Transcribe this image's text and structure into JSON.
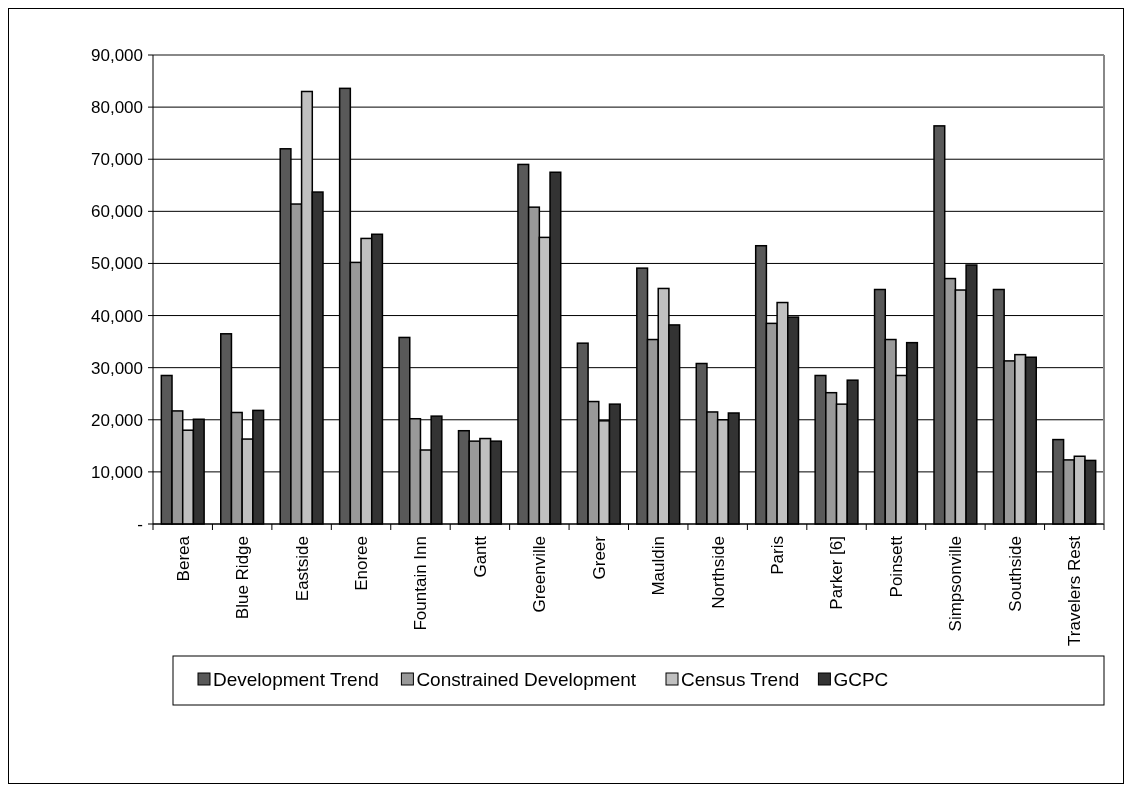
{
  "chart_data": {
    "type": "bar",
    "categories": [
      "Berea",
      "Blue Ridge",
      "Eastside",
      "Enoree",
      "Fountain Inn",
      "Gantt",
      "Greenville",
      "Greer",
      "Mauldin",
      "Northside",
      "Paris",
      "Parker [6]",
      "Poinsett",
      "Simpsonville",
      "Southside",
      "Travelers Rest"
    ],
    "series": [
      {
        "name": "Development Trend",
        "color": "#595959",
        "values": [
          28500,
          36500,
          72000,
          83600,
          35800,
          17900,
          69000,
          34700,
          49100,
          30800,
          53400,
          28500,
          45000,
          76400,
          45000,
          16200
        ]
      },
      {
        "name": "Constrained Development",
        "color": "#999999",
        "values": [
          21700,
          21400,
          61400,
          50200,
          20200,
          15900,
          60800,
          23500,
          35400,
          21500,
          38500,
          25200,
          35400,
          47100,
          31300,
          12300
        ]
      },
      {
        "name": "Census Trend",
        "color": "#c0c0c0",
        "values": [
          18000,
          16300,
          83000,
          54800,
          14200,
          16400,
          55000,
          19800,
          45200,
          20000,
          42500,
          23000,
          28500,
          44900,
          32500,
          13000
        ]
      },
      {
        "name": "GCPC",
        "color": "#333333",
        "values": [
          20100,
          21800,
          63700,
          55600,
          20700,
          15900,
          67500,
          23000,
          38200,
          21300,
          39700,
          27600,
          34800,
          49700,
          32000,
          12200
        ]
      }
    ],
    "ylim": [
      0,
      90000
    ],
    "yticks": [
      {
        "value": 0,
        "label": "-"
      },
      {
        "value": 10000,
        "label": "10,000"
      },
      {
        "value": 20000,
        "label": "20,000"
      },
      {
        "value": 30000,
        "label": "30,000"
      },
      {
        "value": 40000,
        "label": "40,000"
      },
      {
        "value": 50000,
        "label": "50,000"
      },
      {
        "value": 60000,
        "label": "60,000"
      },
      {
        "value": 70000,
        "label": "70,000"
      },
      {
        "value": 80000,
        "label": "80,000"
      },
      {
        "value": 90000,
        "label": "90,000"
      }
    ],
    "grid": "y",
    "legend": "bottom"
  }
}
